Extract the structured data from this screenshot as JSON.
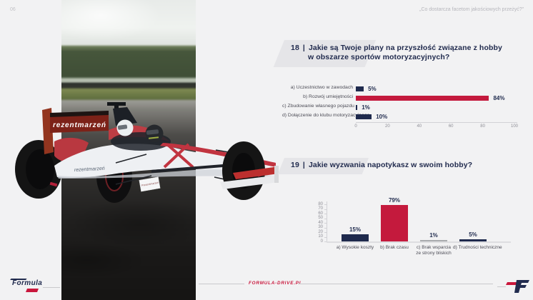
{
  "page": {
    "number": "06",
    "quote": "„Co dostarcza facetom jakościowych przeżyć?”"
  },
  "colors": {
    "navy": "#1f2a4d",
    "red": "#c41a3d",
    "gray": "#a9abae",
    "axis": "#d2d2d6",
    "background": "#f2f2f3"
  },
  "ui": {
    "pipe": "|"
  },
  "photo": {
    "description": "formula-race-car-on-track",
    "rear_wing_text": "rezentmarzeń",
    "side_text": "rezentmarzeń",
    "panel_text": "Prezentmarzeń"
  },
  "chart_data": [
    {
      "type": "bar",
      "orientation": "horizontal",
      "question_number": "18",
      "title": "Jakie są Twoje plany na przyszłość związane z hobby w obszarze sportów motoryzacyjnych?",
      "title_lines": [
        "Jakie są Twoje plany na przyszłość związane z hobby",
        "w obszarze sportów motoryzacyjnych?"
      ],
      "categories": [
        "a) Uczestnictwo w zawodach",
        "b) Rozwój umiejętności",
        "c) Zbudowanie własnego pojazdu",
        "d) Dołączenie do klubu motoryzacyjnego"
      ],
      "values": [
        5,
        84,
        1,
        10
      ],
      "value_labels": [
        "5%",
        "84%",
        "1%",
        "10%"
      ],
      "bar_colors": [
        "navy",
        "red",
        "navy",
        "navy"
      ],
      "xlim": [
        0,
        100
      ],
      "xticks": [
        0,
        20,
        40,
        60,
        80,
        100
      ],
      "grid": false,
      "legend": false
    },
    {
      "type": "bar",
      "orientation": "vertical",
      "question_number": "19",
      "title": "Jakie wyzwania napotykasz w swoim hobby?",
      "title_lines": [
        "Jakie wyzwania napotykasz w swoim hobby?"
      ],
      "categories": [
        [
          "a) Wysokie koszty"
        ],
        [
          "b) Brak czasu"
        ],
        [
          "c) Brak wsparcia",
          "ze strony bliskich"
        ],
        [
          "d) Trudności techniczne"
        ]
      ],
      "values": [
        15,
        79,
        1,
        5
      ],
      "value_labels": [
        "15%",
        "79%",
        "1%",
        "5%"
      ],
      "bar_colors": [
        "navy",
        "red",
        "gray",
        "navy"
      ],
      "ylim": [
        0,
        80
      ],
      "yticks": [
        0,
        10,
        20,
        30,
        40,
        50,
        60,
        70,
        80
      ],
      "grid": false,
      "legend": false
    }
  ],
  "footer": {
    "brand_text": "Formula",
    "site_text": "FORMULA-DRIVE.PL"
  }
}
